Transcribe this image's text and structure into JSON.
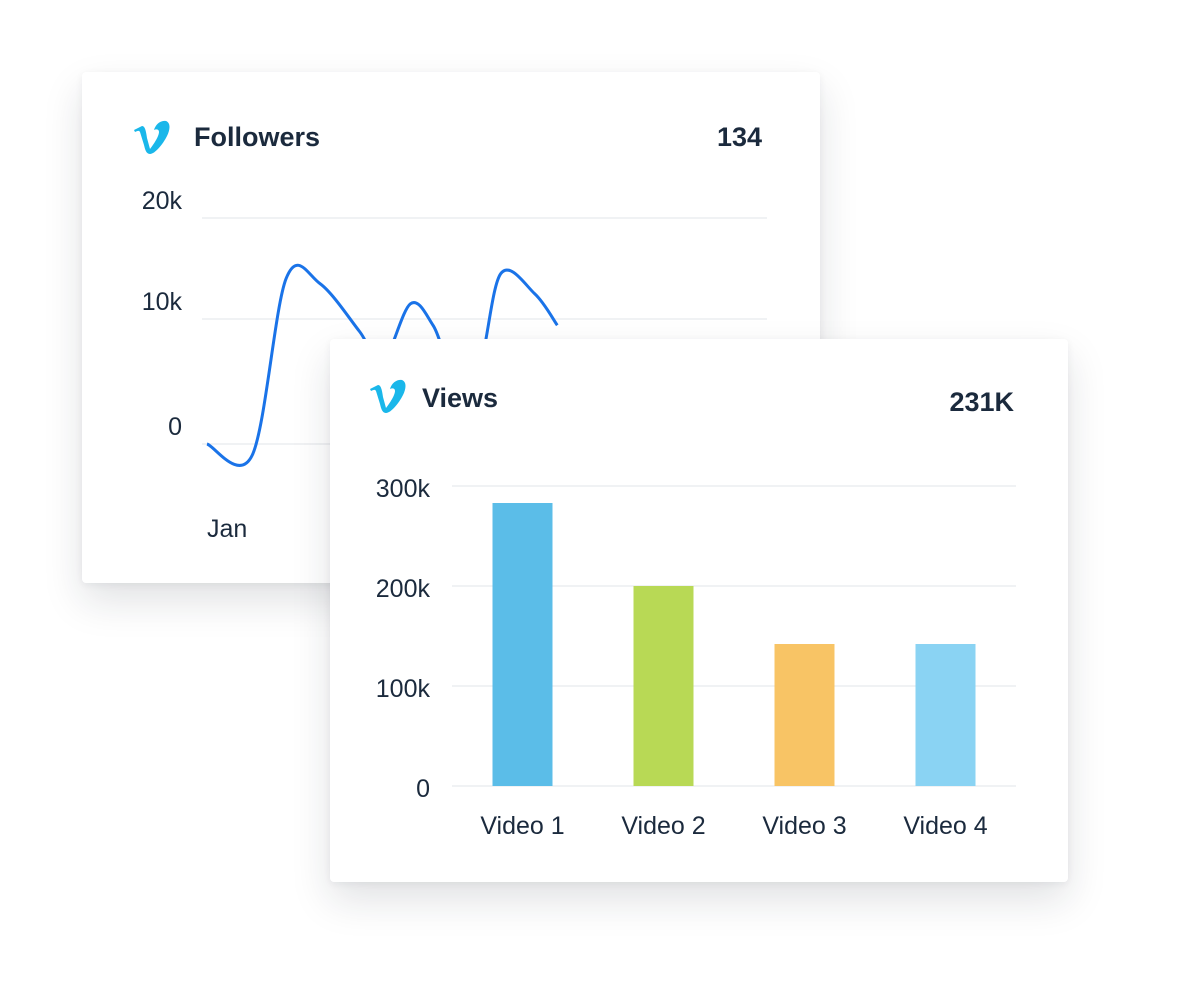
{
  "colors": {
    "brand": "#1ab7ea",
    "line": "#1a73e8",
    "grid": "#ebedf0",
    "text": "#1b2a3d"
  },
  "followers_card": {
    "icon": "vimeo-icon",
    "title": "Followers",
    "value": "134"
  },
  "views_card": {
    "icon": "vimeo-icon",
    "title": "Views",
    "value": "231K"
  },
  "chart_data": [
    {
      "type": "line",
      "ylim": [
        0,
        20000
      ],
      "yticks": [
        0,
        10000,
        20000
      ],
      "ytick_labels": [
        "0",
        "10k",
        "20k"
      ],
      "xtick_labels": [
        "Jan"
      ],
      "grid": true,
      "series": [
        {
          "color": "#1a73e8",
          "points": [
            {
              "x": 0.0,
              "y": 0
            },
            {
              "x": 0.08,
              "y": -900
            },
            {
              "x": 0.14,
              "y": 14000
            },
            {
              "x": 0.2,
              "y": 13500
            },
            {
              "x": 0.27,
              "y": 9000
            },
            {
              "x": 0.31,
              "y": 6500
            },
            {
              "x": 0.36,
              "y": 11500
            },
            {
              "x": 0.4,
              "y": 9500
            },
            {
              "x": 0.43,
              "y": 6500
            },
            {
              "x": 0.48,
              "y": 6000
            },
            {
              "x": 0.52,
              "y": 14500
            },
            {
              "x": 0.58,
              "y": 12500
            },
            {
              "x": 0.62,
              "y": 9500
            }
          ]
        }
      ]
    },
    {
      "type": "bar",
      "categories": [
        "Video 1",
        "Video 2",
        "Video 3",
        "Video 4"
      ],
      "values": [
        283000,
        200000,
        142000,
        142000
      ],
      "colors": [
        "#5bbde8",
        "#b8d955",
        "#f8c465",
        "#8ad3f3"
      ],
      "ylim": [
        0,
        300000
      ],
      "yticks": [
        0,
        100000,
        200000,
        300000
      ],
      "ytick_labels": [
        "0",
        "100k",
        "200k",
        "300k"
      ],
      "grid": true
    }
  ]
}
